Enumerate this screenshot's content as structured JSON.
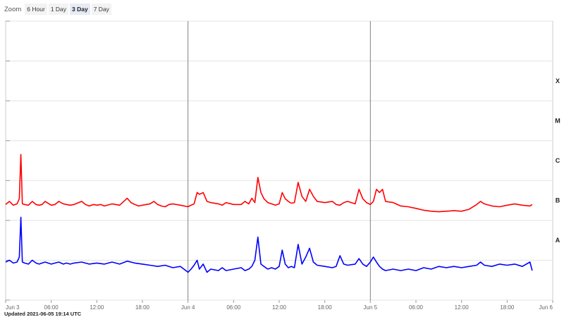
{
  "zoom": {
    "label": "Zoom",
    "buttons": [
      "6 Hour",
      "1 Day",
      "3 Day",
      "7 Day"
    ],
    "active": "3 Day"
  },
  "footer": {
    "updated": "Updated 2021-06-05 19:14 UTC"
  },
  "colors": {
    "long": "#ff0000",
    "short": "#0000ff",
    "grid": "#e3e3e3",
    "day_line": "#808080"
  },
  "chart_data": {
    "type": "line",
    "xlabel": "",
    "ylabel": "",
    "title": "",
    "x_tick_labels": [
      "Jun 3",
      "06:00",
      "12:00",
      "18:00",
      "Jun 4",
      "06:00",
      "12:00",
      "18:00",
      "Jun 5",
      "06:00",
      "12:00",
      "18:00",
      "Jun 6"
    ],
    "xlim_hours": [
      0,
      72
    ],
    "y_scale": "log",
    "ylim": [
      1e-09,
      0.01
    ],
    "flare_classes": [
      "A",
      "B",
      "C",
      "M",
      "X"
    ],
    "grid": true,
    "series": [
      {
        "color": "#ff0000",
        "x_hours": [
          0,
          0.5,
          1,
          1.5,
          1.8,
          2.0,
          2.2,
          2.5,
          3,
          3.5,
          4,
          4.4,
          4.8,
          5.2,
          6,
          6.5,
          7,
          7.6,
          8,
          8.5,
          9,
          10,
          10.5,
          11,
          11.3,
          11.6,
          12,
          12.5,
          13,
          14,
          15,
          16,
          16.5,
          17,
          17.5,
          18,
          18.5,
          19,
          19.5,
          20,
          20.5,
          21,
          21.5,
          22,
          23,
          24,
          24.4,
          24.8,
          25.2,
          25.5,
          26,
          26.5,
          27,
          28,
          28.5,
          29,
          30,
          31,
          31.5,
          32,
          32.4,
          32.8,
          33.2,
          33.6,
          34,
          34.5,
          35,
          35.5,
          36,
          36.4,
          36.8,
          37.2,
          37.6,
          38,
          38.5,
          39,
          39.5,
          40,
          40.5,
          41,
          42,
          43,
          43.5,
          44,
          44.5,
          45,
          46,
          46.5,
          47,
          47.5,
          48,
          48.4,
          48.8,
          49.2,
          49.6,
          50,
          51,
          52,
          53,
          54,
          55,
          56,
          57,
          58,
          59,
          60,
          61,
          62,
          62.5,
          63,
          64,
          65,
          66,
          67,
          68,
          69,
          69.3
        ],
        "y_wm2": [
          2.5e-07,
          3e-07,
          2.4e-07,
          2.6e-07,
          3.5e-07,
          4.5e-06,
          2.6e-07,
          2.5e-07,
          2.4e-07,
          3e-07,
          2.5e-07,
          2.4e-07,
          2.5e-07,
          3e-07,
          2.4e-07,
          2.5e-07,
          3e-07,
          2.6e-07,
          2.5e-07,
          2.4e-07,
          2.5e-07,
          3e-07,
          2.5e-07,
          2.3e-07,
          2.4e-07,
          2.5e-07,
          2.4e-07,
          2.5e-07,
          2.3e-07,
          2.6e-07,
          2.4e-07,
          3.6e-07,
          2.8e-07,
          2.5e-07,
          2.3e-07,
          2.4e-07,
          2.5e-07,
          2.6e-07,
          3e-07,
          2.5e-07,
          2.3e-07,
          2.2e-07,
          2.5e-07,
          2.6e-07,
          2.4e-07,
          2.2e-07,
          2.4e-07,
          2.6e-07,
          5e-07,
          4.5e-07,
          5e-07,
          3e-07,
          2.8e-07,
          2.6e-07,
          2.4e-07,
          2.8e-07,
          2.5e-07,
          2.5e-07,
          3e-07,
          2.6e-07,
          3.6e-07,
          2.8e-07,
          1.2e-06,
          5e-07,
          3.5e-07,
          2.8e-07,
          2.6e-07,
          2.4e-07,
          2.6e-07,
          5e-07,
          3.5e-07,
          3e-07,
          2.7e-07,
          2.8e-07,
          9e-07,
          4e-07,
          3e-07,
          6e-07,
          4e-07,
          3e-07,
          2.8e-07,
          3e-07,
          2.5e-07,
          2.4e-07,
          2.8e-07,
          3e-07,
          2.6e-07,
          6e-07,
          3.5e-07,
          2.8e-07,
          2.5e-07,
          3e-07,
          6e-07,
          5e-07,
          6e-07,
          3e-07,
          2.8e-07,
          2.3e-07,
          2.2e-07,
          2e-07,
          1.8e-07,
          1.7e-07,
          1.65e-07,
          1.7e-07,
          1.75e-07,
          1.7e-07,
          1.9e-07,
          2.5e-07,
          3e-07,
          2.6e-07,
          2.3e-07,
          2.2e-07,
          2.4e-07,
          2.6e-07,
          2.4e-07,
          2.3e-07,
          2.5e-07
        ]
      },
      {
        "color": "#0000ff",
        "x_hours": [
          0,
          0.5,
          1,
          1.5,
          1.8,
          2.0,
          2.2,
          2.5,
          3,
          3.5,
          4,
          4.4,
          4.8,
          5.2,
          6,
          6.5,
          7,
          7.6,
          8,
          8.5,
          9,
          10,
          11,
          12,
          13,
          14,
          15,
          16,
          17,
          18,
          19,
          20,
          21,
          22,
          23,
          24,
          24.4,
          24.8,
          25.2,
          25.5,
          26,
          26.5,
          27,
          28,
          28.5,
          29,
          30,
          31,
          31.5,
          32,
          32.4,
          32.8,
          33.2,
          33.6,
          34,
          34.5,
          35,
          35.5,
          36,
          36.4,
          36.8,
          37.2,
          37.6,
          38,
          38.5,
          39,
          39.5,
          40,
          40.5,
          41,
          42,
          43,
          43.5,
          44,
          44.5,
          45,
          46,
          46.5,
          47,
          47.5,
          48,
          48.4,
          48.8,
          49.2,
          49.6,
          50,
          51,
          52,
          53,
          54,
          55,
          56,
          57,
          58,
          59,
          60,
          61,
          62,
          62.5,
          63,
          64,
          65,
          66,
          67,
          68,
          69,
          69.3
        ],
        "y_wm2": [
          9e-09,
          1e-08,
          8.5e-09,
          9e-09,
          1.2e-08,
          1.2e-07,
          9e-09,
          8.5e-09,
          8e-09,
          1e-08,
          8.5e-09,
          8e-09,
          8.5e-09,
          9e-09,
          8e-09,
          8.5e-09,
          9e-09,
          8e-09,
          8.5e-09,
          8e-09,
          8.5e-09,
          9e-09,
          8e-09,
          8.5e-09,
          8e-09,
          9e-09,
          8e-09,
          9.5e-09,
          8.5e-09,
          8e-09,
          7.5e-09,
          7e-09,
          7.5e-09,
          6.5e-09,
          7e-09,
          5e-09,
          6e-09,
          7.5e-09,
          1e-08,
          6e-09,
          8e-09,
          5e-09,
          6e-09,
          5.5e-09,
          6.5e-09,
          5.5e-09,
          6e-09,
          6.5e-09,
          5.5e-09,
          6e-09,
          7e-09,
          1e-08,
          3.8e-08,
          8e-09,
          7e-09,
          6e-09,
          6.5e-09,
          6e-09,
          7e-09,
          1.8e-08,
          8e-09,
          6.5e-09,
          7e-09,
          6.5e-09,
          2.5e-08,
          8e-09,
          1.2e-08,
          2e-08,
          9e-09,
          7.5e-09,
          7e-09,
          6.5e-09,
          7e-09,
          1.3e-08,
          8e-09,
          7.5e-09,
          8e-09,
          1.1e-08,
          8e-09,
          7e-09,
          9e-09,
          1.2e-08,
          9e-09,
          7e-09,
          6e-09,
          5.5e-09,
          6e-09,
          5.5e-09,
          6e-09,
          5.5e-09,
          6.5e-09,
          6e-09,
          7e-09,
          6.5e-09,
          7e-09,
          6.5e-09,
          7e-09,
          7.5e-09,
          9e-09,
          7.5e-09,
          7e-09,
          8e-09,
          7.5e-09,
          8e-09,
          7e-09,
          9e-09,
          5.5e-09
        ]
      }
    ]
  }
}
